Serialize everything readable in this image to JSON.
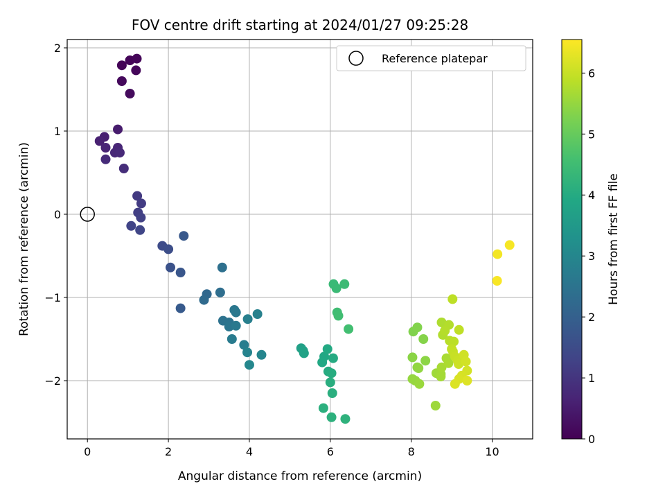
{
  "chart_data": {
    "type": "scatter",
    "title": "FOV centre drift starting at 2024/01/27 09:25:28",
    "xlabel": "Angular distance from reference (arcmin)",
    "ylabel": "Rotation from reference (arcmin)",
    "xlim": [
      -0.5,
      11.0
    ],
    "ylim": [
      -2.7,
      2.1
    ],
    "xticks": [
      0,
      2,
      4,
      6,
      8,
      10
    ],
    "yticks": [
      -2,
      -1,
      0,
      1,
      2
    ],
    "grid": true,
    "legend": {
      "placement": "top-right",
      "entries": [
        "Reference platepar"
      ]
    },
    "reference_point": {
      "name": "Reference platepar",
      "x": 0,
      "y": 0
    },
    "colorbar": {
      "label": "Hours from first FF file",
      "range": [
        0,
        6.55
      ],
      "ticks": [
        0,
        1,
        2,
        3,
        4,
        5,
        6
      ],
      "colormap": "viridis"
    },
    "points": [
      {
        "x": 0.85,
        "y": 1.79,
        "c": 0.05
      },
      {
        "x": 1.05,
        "y": 1.85,
        "c": 0.08
      },
      {
        "x": 1.22,
        "y": 1.87,
        "c": 0.1
      },
      {
        "x": 1.2,
        "y": 1.73,
        "c": 0.12
      },
      {
        "x": 0.85,
        "y": 1.6,
        "c": 0.15
      },
      {
        "x": 1.05,
        "y": 1.45,
        "c": 0.18
      },
      {
        "x": 0.75,
        "y": 1.02,
        "c": 0.5
      },
      {
        "x": 0.42,
        "y": 0.93,
        "c": 0.55
      },
      {
        "x": 0.3,
        "y": 0.88,
        "c": 0.6
      },
      {
        "x": 0.45,
        "y": 0.8,
        "c": 0.65
      },
      {
        "x": 0.75,
        "y": 0.8,
        "c": 0.7
      },
      {
        "x": 0.68,
        "y": 0.74,
        "c": 0.72
      },
      {
        "x": 0.8,
        "y": 0.74,
        "c": 0.75
      },
      {
        "x": 0.45,
        "y": 0.66,
        "c": 0.8
      },
      {
        "x": 0.9,
        "y": 0.55,
        "c": 0.85
      },
      {
        "x": 1.23,
        "y": 0.22,
        "c": 1.1
      },
      {
        "x": 1.33,
        "y": 0.13,
        "c": 1.15
      },
      {
        "x": 1.25,
        "y": 0.02,
        "c": 1.2
      },
      {
        "x": 1.32,
        "y": -0.04,
        "c": 1.25
      },
      {
        "x": 1.08,
        "y": -0.14,
        "c": 1.3
      },
      {
        "x": 1.3,
        "y": -0.19,
        "c": 1.35
      },
      {
        "x": 1.85,
        "y": -0.38,
        "c": 1.5
      },
      {
        "x": 2.0,
        "y": -0.42,
        "c": 1.55
      },
      {
        "x": 2.38,
        "y": -0.26,
        "c": 1.8
      },
      {
        "x": 2.05,
        "y": -0.64,
        "c": 1.65
      },
      {
        "x": 2.3,
        "y": -0.7,
        "c": 1.75
      },
      {
        "x": 2.3,
        "y": -1.13,
        "c": 1.85
      },
      {
        "x": 3.33,
        "y": -0.64,
        "c": 2.4
      },
      {
        "x": 2.95,
        "y": -0.96,
        "c": 2.2
      },
      {
        "x": 2.88,
        "y": -1.03,
        "c": 2.25
      },
      {
        "x": 3.28,
        "y": -0.94,
        "c": 2.35
      },
      {
        "x": 3.35,
        "y": -1.28,
        "c": 2.45
      },
      {
        "x": 3.5,
        "y": -1.3,
        "c": 2.5
      },
      {
        "x": 3.5,
        "y": -1.35,
        "c": 2.55
      },
      {
        "x": 3.63,
        "y": -1.15,
        "c": 2.6
      },
      {
        "x": 3.67,
        "y": -1.18,
        "c": 2.62
      },
      {
        "x": 3.67,
        "y": -1.34,
        "c": 2.65
      },
      {
        "x": 3.57,
        "y": -1.5,
        "c": 2.7
      },
      {
        "x": 3.87,
        "y": -1.57,
        "c": 2.75
      },
      {
        "x": 3.96,
        "y": -1.26,
        "c": 2.8
      },
      {
        "x": 4.2,
        "y": -1.2,
        "c": 2.85
      },
      {
        "x": 3.95,
        "y": -1.66,
        "c": 2.9
      },
      {
        "x": 4.3,
        "y": -1.69,
        "c": 2.95
      },
      {
        "x": 4.0,
        "y": -1.81,
        "c": 3.0
      },
      {
        "x": 5.28,
        "y": -1.61,
        "c": 3.7
      },
      {
        "x": 5.33,
        "y": -1.64,
        "c": 3.72
      },
      {
        "x": 5.35,
        "y": -1.67,
        "c": 3.75
      },
      {
        "x": 5.85,
        "y": -1.71,
        "c": 3.9
      },
      {
        "x": 5.8,
        "y": -1.78,
        "c": 3.92
      },
      {
        "x": 5.93,
        "y": -1.62,
        "c": 3.95
      },
      {
        "x": 6.07,
        "y": -1.73,
        "c": 4.0
      },
      {
        "x": 5.95,
        "y": -1.89,
        "c": 4.02
      },
      {
        "x": 6.03,
        "y": -1.91,
        "c": 4.05
      },
      {
        "x": 6.0,
        "y": -2.02,
        "c": 4.08
      },
      {
        "x": 6.05,
        "y": -2.15,
        "c": 4.1
      },
      {
        "x": 5.83,
        "y": -2.33,
        "c": 4.12
      },
      {
        "x": 6.03,
        "y": -2.44,
        "c": 4.15
      },
      {
        "x": 6.37,
        "y": -2.46,
        "c": 4.18
      },
      {
        "x": 6.08,
        "y": -0.84,
        "c": 4.4
      },
      {
        "x": 6.15,
        "y": -0.89,
        "c": 4.42
      },
      {
        "x": 6.35,
        "y": -0.84,
        "c": 4.45
      },
      {
        "x": 6.17,
        "y": -1.18,
        "c": 4.5
      },
      {
        "x": 6.2,
        "y": -1.22,
        "c": 4.52
      },
      {
        "x": 6.45,
        "y": -1.38,
        "c": 4.55
      },
      {
        "x": 8.05,
        "y": -1.41,
        "c": 5.3
      },
      {
        "x": 8.15,
        "y": -1.36,
        "c": 5.32
      },
      {
        "x": 8.3,
        "y": -1.5,
        "c": 5.35
      },
      {
        "x": 8.03,
        "y": -1.72,
        "c": 5.4
      },
      {
        "x": 8.35,
        "y": -1.76,
        "c": 5.42
      },
      {
        "x": 8.15,
        "y": -1.84,
        "c": 5.45
      },
      {
        "x": 8.18,
        "y": -1.85,
        "c": 5.47
      },
      {
        "x": 8.03,
        "y": -1.98,
        "c": 5.5
      },
      {
        "x": 8.1,
        "y": -2.0,
        "c": 5.52
      },
      {
        "x": 8.2,
        "y": -2.04,
        "c": 5.55
      },
      {
        "x": 8.6,
        "y": -2.3,
        "c": 5.58
      },
      {
        "x": 8.62,
        "y": -1.91,
        "c": 5.6
      },
      {
        "x": 8.73,
        "y": -1.92,
        "c": 5.62
      },
      {
        "x": 8.73,
        "y": -1.95,
        "c": 5.65
      },
      {
        "x": 8.75,
        "y": -1.84,
        "c": 5.68
      },
      {
        "x": 8.87,
        "y": -1.73,
        "c": 5.7
      },
      {
        "x": 8.92,
        "y": -1.79,
        "c": 5.72
      },
      {
        "x": 8.75,
        "y": -1.3,
        "c": 5.75
      },
      {
        "x": 8.78,
        "y": -1.45,
        "c": 5.78
      },
      {
        "x": 8.93,
        "y": -1.33,
        "c": 5.8
      },
      {
        "x": 8.83,
        "y": -1.4,
        "c": 5.82
      },
      {
        "x": 8.95,
        "y": -1.52,
        "c": 5.85
      },
      {
        "x": 9.05,
        "y": -1.53,
        "c": 5.88
      },
      {
        "x": 9.02,
        "y": -1.02,
        "c": 5.9
      },
      {
        "x": 9.18,
        "y": -1.39,
        "c": 5.92
      },
      {
        "x": 9.0,
        "y": -1.62,
        "c": 5.95
      },
      {
        "x": 9.03,
        "y": -1.65,
        "c": 5.97
      },
      {
        "x": 9.08,
        "y": -1.71,
        "c": 6.0
      },
      {
        "x": 9.15,
        "y": -1.76,
        "c": 6.02
      },
      {
        "x": 9.17,
        "y": -1.8,
        "c": 6.05
      },
      {
        "x": 9.3,
        "y": -1.69,
        "c": 6.08
      },
      {
        "x": 9.35,
        "y": -1.77,
        "c": 6.1
      },
      {
        "x": 9.38,
        "y": -1.88,
        "c": 6.12
      },
      {
        "x": 9.25,
        "y": -1.94,
        "c": 6.15
      },
      {
        "x": 9.18,
        "y": -1.98,
        "c": 6.18
      },
      {
        "x": 9.08,
        "y": -2.04,
        "c": 6.2
      },
      {
        "x": 9.38,
        "y": -2.0,
        "c": 6.22
      },
      {
        "x": 10.13,
        "y": -0.48,
        "c": 6.45
      },
      {
        "x": 10.43,
        "y": -0.37,
        "c": 6.48
      },
      {
        "x": 10.12,
        "y": -0.8,
        "c": 6.5
      }
    ]
  }
}
